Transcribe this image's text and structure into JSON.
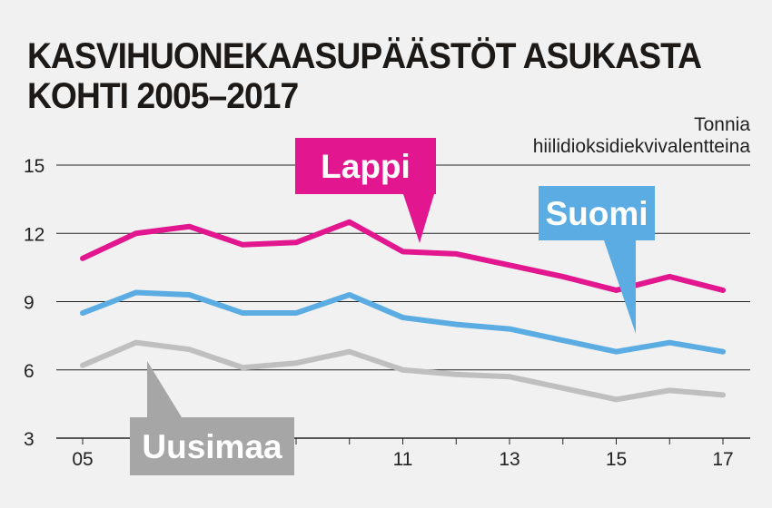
{
  "title_line1": "KASVIHUONEKAASUPÄÄSTÖT ASUKASTA",
  "title_line2": "KOHTI 2005–2017",
  "unit_line1": "Tonnia",
  "unit_line2": "hiilidioksidiekvivalentteina",
  "colors": {
    "background": "#f1f1f1",
    "lappi": "#e2168f",
    "suomi": "#5aace2",
    "uusimaa": "#bfbfbf",
    "uusimaa_label_box": "#a6a6a6",
    "grid": "#222222"
  },
  "chart_data": {
    "type": "line",
    "title": "KASVIHUONEKAASUPÄÄSTÖT ASUKASTA KOHTI 2005–2017",
    "ylabel": "Tonnia hiilidioksidiekvivalentteina",
    "xlabel": "",
    "x": [
      2005,
      2006,
      2007,
      2008,
      2009,
      2010,
      2011,
      2012,
      2013,
      2014,
      2015,
      2016,
      2017
    ],
    "x_tick_labels": [
      {
        "x": 2005,
        "label": "05"
      },
      {
        "x": 2011,
        "label": "11"
      },
      {
        "x": 2013,
        "label": "13"
      },
      {
        "x": 2015,
        "label": "15"
      },
      {
        "x": 2017,
        "label": "17"
      }
    ],
    "y_ticks": [
      3,
      6,
      9,
      12,
      15
    ],
    "y_tick_labels": [
      "3",
      "6",
      "9",
      "12",
      "15"
    ],
    "ylim": [
      3,
      15
    ],
    "grid": true,
    "series": [
      {
        "name": "Lappi",
        "color": "#e2168f",
        "values": [
          10.9,
          12.0,
          12.3,
          11.5,
          11.6,
          12.5,
          11.2,
          11.1,
          10.6,
          10.1,
          9.5,
          10.1,
          9.5
        ]
      },
      {
        "name": "Suomi",
        "color": "#5aace2",
        "values": [
          8.5,
          9.4,
          9.3,
          8.5,
          8.5,
          9.3,
          8.3,
          8.0,
          7.8,
          7.3,
          6.8,
          7.2,
          6.8
        ]
      },
      {
        "name": "Uusimaa",
        "color": "#bfbfbf",
        "values": [
          6.2,
          7.2,
          6.9,
          6.1,
          6.3,
          6.8,
          6.0,
          5.8,
          5.7,
          5.2,
          4.7,
          5.1,
          4.9
        ]
      }
    ]
  }
}
